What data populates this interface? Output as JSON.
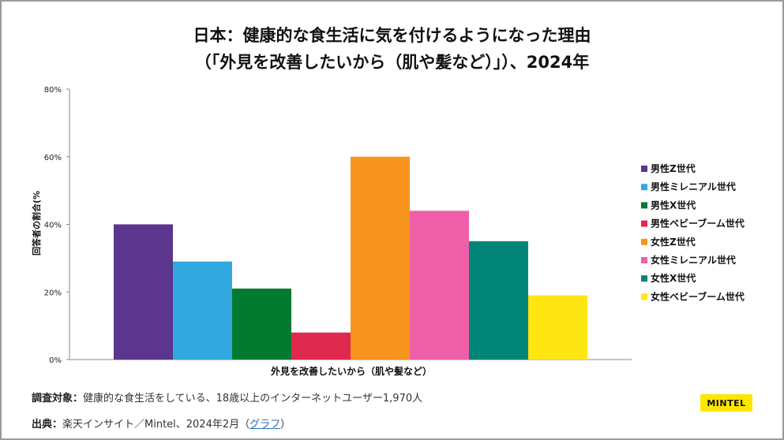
{
  "chart_data": {
    "type": "bar",
    "title_line1": "日本：健康的な食生活に気を付けるようになった理由",
    "title_line2": "（「外見を改善したいから（肌や髪など）」）、2024年",
    "categories": [
      "外見を改善したいから（肌や髪など）"
    ],
    "xlabel": "外見を改善したいから（肌や髪など）",
    "ylabel": "回答者の割合(%",
    "ylim": [
      0,
      80
    ],
    "yticks": [
      "0%",
      "20%",
      "40%",
      "60%",
      "80%"
    ],
    "grid": false,
    "legend": "right",
    "series": [
      {
        "name": "男性Z世代",
        "value": 40,
        "color": "#5c358e"
      },
      {
        "name": "男性ミレニアル世代",
        "value": 29,
        "color": "#31a8e0"
      },
      {
        "name": "男性X世代",
        "value": 21,
        "color": "#047a30"
      },
      {
        "name": "男性ベビーブーム世代",
        "value": 8,
        "color": "#e0294f"
      },
      {
        "name": "女性Z世代",
        "value": 60,
        "color": "#f7941d"
      },
      {
        "name": "女性ミレニアル世代",
        "value": 44,
        "color": "#ef5fa7"
      },
      {
        "name": "女性X世代",
        "value": 35,
        "color": "#008578"
      },
      {
        "name": "女性ベビーブーム世代",
        "value": 19,
        "color": "#ffe512"
      }
    ]
  },
  "footer": {
    "survey_label": "調査対象：",
    "survey_text": "健康的な食生活をしている、18歳以上のインターネットユーザー1,970人",
    "source_label": "出典：",
    "source_text": "楽天インサイト／Mintel、2024年2月（",
    "source_link": "グラフ",
    "source_close": "）"
  },
  "logo": "MINTEL"
}
